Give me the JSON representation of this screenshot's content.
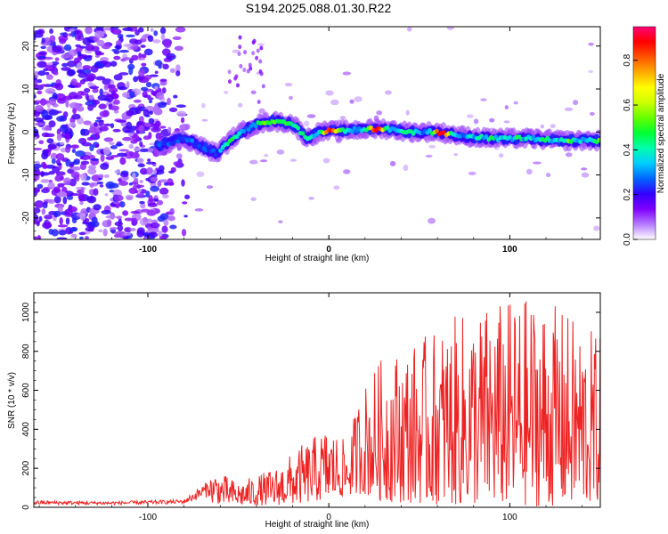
{
  "title": "S194.2025.088.01.30.R22",
  "chart_data": [
    {
      "type": "heatmap",
      "xlabel": "Height of straight line (km)",
      "ylabel": "Frequency (Hz)",
      "xlim": [
        -163,
        150
      ],
      "ylim": [
        -25,
        24.5
      ],
      "xticks": [
        -100,
        0,
        100
      ],
      "yticks": [
        -20,
        -10,
        0,
        10,
        20
      ],
      "colorbar": {
        "label": "Normalized spectral amplitude",
        "range": [
          0,
          0.95
        ],
        "ticks": [
          0.0,
          0.2,
          0.4,
          0.6,
          0.8
        ],
        "colors": [
          "#ffffff",
          "#b57bff",
          "#7f00ff",
          "#3300ff",
          "#0066ff",
          "#00ccff",
          "#00ffb0",
          "#00ff33",
          "#66ff00",
          "#ccff00",
          "#ffff00",
          "#ffaa00",
          "#ff5500",
          "#ff0000",
          "#ff0077"
        ]
      },
      "ridge": {
        "description_points": [
          {
            "x": -93,
            "y": -3
          },
          {
            "x": -80,
            "y": -1.5
          },
          {
            "x": -70,
            "y": -3.5
          },
          {
            "x": -62,
            "y": -5
          },
          {
            "x": -52,
            "y": -1
          },
          {
            "x": -42,
            "y": 1.5
          },
          {
            "x": -32,
            "y": 2.5
          },
          {
            "x": -20,
            "y": 2
          },
          {
            "x": -12,
            "y": -1.5
          },
          {
            "x": -5,
            "y": 0
          },
          {
            "x": 0,
            "y": 0.2
          },
          {
            "x": 15,
            "y": 0.5
          },
          {
            "x": 30,
            "y": 0.8
          },
          {
            "x": 45,
            "y": 0
          },
          {
            "x": 60,
            "y": 0
          },
          {
            "x": 75,
            "y": -1
          },
          {
            "x": 90,
            "y": -1.5
          },
          {
            "x": 110,
            "y": -1.5
          },
          {
            "x": 130,
            "y": -2
          },
          {
            "x": 150,
            "y": -2
          }
        ],
        "peak_amplitude_near_x": [
          0,
          27,
          62
        ]
      }
    },
    {
      "type": "line",
      "xlabel": "Height of straight line (km)",
      "ylabel": "SNR (10 * v/v)",
      "xlim": [
        -163,
        150
      ],
      "ylim": [
        0,
        1100
      ],
      "xticks": [
        -100,
        0,
        100
      ],
      "yticks": [
        0,
        200,
        400,
        600,
        800,
        1000
      ],
      "series": [
        {
          "color": "#ee2222",
          "envelope": [
            {
              "x": -163,
              "y_min": 5,
              "y_max": 40
            },
            {
              "x": -120,
              "y_min": 5,
              "y_max": 35
            },
            {
              "x": -80,
              "y_min": 10,
              "y_max": 45
            },
            {
              "x": -63,
              "y_min": 20,
              "y_max": 190
            },
            {
              "x": -50,
              "y_min": 10,
              "y_max": 130
            },
            {
              "x": -30,
              "y_min": 10,
              "y_max": 200
            },
            {
              "x": -15,
              "y_min": 20,
              "y_max": 320
            },
            {
              "x": 0,
              "y_min": 40,
              "y_max": 420
            },
            {
              "x": 10,
              "y_min": 60,
              "y_max": 330
            },
            {
              "x": 18,
              "y_min": 70,
              "y_max": 620
            },
            {
              "x": 30,
              "y_min": 30,
              "y_max": 780
            },
            {
              "x": 50,
              "y_min": 20,
              "y_max": 860
            },
            {
              "x": 70,
              "y_min": 10,
              "y_max": 980
            },
            {
              "x": 90,
              "y_min": 10,
              "y_max": 1050
            },
            {
              "x": 115,
              "y_min": 5,
              "y_max": 1090
            },
            {
              "x": 135,
              "y_min": 10,
              "y_max": 980
            },
            {
              "x": 150,
              "y_min": 20,
              "y_max": 880
            }
          ]
        }
      ]
    }
  ]
}
